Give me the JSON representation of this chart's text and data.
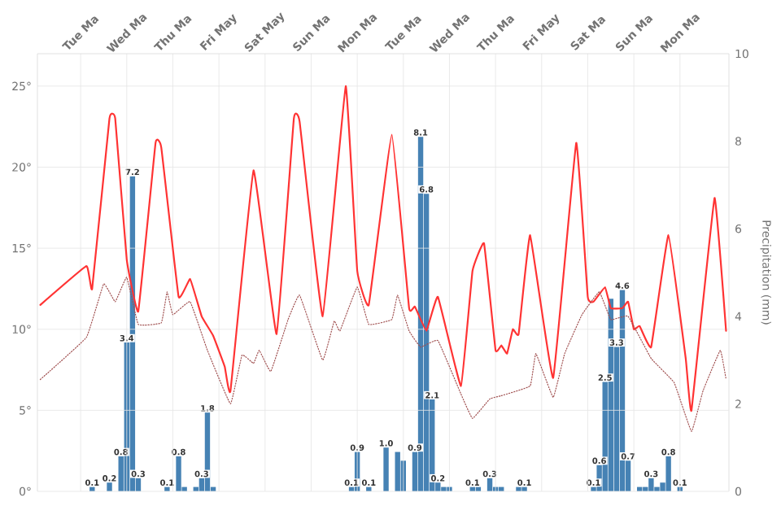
{
  "chart_data": {
    "type": "line",
    "y2label": "Precipitation (mm)",
    "categories": [
      null,
      null,
      null,
      null,
      null,
      null,
      null,
      "Tue Ma",
      null,
      null,
      null,
      null,
      null,
      null,
      null,
      "Wed Ma",
      null,
      null,
      null,
      null,
      null,
      null,
      null,
      "Thu Ma",
      null,
      null,
      null,
      null,
      null,
      null,
      null,
      "Fri May",
      null,
      null,
      null,
      null,
      null,
      null,
      null,
      "Sat May",
      null,
      null,
      null,
      null,
      null,
      null,
      null,
      "Sun Ma",
      null,
      null,
      null,
      null,
      null,
      null,
      null,
      "Mon Ma",
      null,
      null,
      null,
      null,
      null,
      null,
      null,
      "Tue Ma",
      null,
      null,
      null,
      null,
      null,
      null,
      null,
      "Wed Ma",
      null,
      null,
      null,
      null,
      null,
      null,
      null,
      "Thu Ma",
      null,
      null,
      null,
      null,
      null,
      null,
      null,
      "Fri May",
      null,
      null,
      null,
      null,
      null,
      null,
      null,
      "Sat Ma",
      null,
      null,
      null,
      null,
      null,
      null,
      null,
      "Sun Ma",
      null,
      null,
      null,
      null,
      null,
      null,
      null,
      "Mon Ma",
      null,
      null,
      null,
      null,
      null,
      null,
      null,
      null
    ],
    "ylim": [
      0,
      27
    ],
    "yticks": [
      {
        "value": 0,
        "label": "0°"
      },
      {
        "value": 5,
        "label": "5°"
      },
      {
        "value": 10,
        "label": "10°"
      },
      {
        "value": 15,
        "label": "15°"
      },
      {
        "value": 20,
        "label": "20°"
      },
      {
        "value": 25,
        "label": "25°"
      }
    ],
    "y2lim": [
      0,
      10
    ],
    "y2ticks": [
      0,
      2,
      4,
      6,
      8,
      10
    ],
    "grid": true,
    "series": [
      {
        "type": "bar",
        "axis": "y2",
        "color": "#4682b4",
        "values": [
          null,
          null,
          null,
          null,
          null,
          null,
          null,
          null,
          null,
          0.1,
          null,
          null,
          0.2,
          null,
          0.8,
          3.4,
          7.2,
          0.3,
          null,
          null,
          null,
          null,
          0.1,
          null,
          0.8,
          0.1,
          null,
          0.1,
          0.3,
          1.8,
          0.1,
          null,
          null,
          null,
          null,
          null,
          null,
          null,
          null,
          null,
          null,
          null,
          null,
          null,
          null,
          null,
          null,
          null,
          null,
          null,
          null,
          null,
          null,
          null,
          0.1,
          0.9,
          null,
          0.1,
          null,
          null,
          1.0,
          null,
          0.9,
          0.7,
          null,
          0.9,
          8.1,
          6.8,
          2.1,
          0.2,
          0.1,
          0.1,
          null,
          null,
          null,
          0.1,
          0.1,
          null,
          0.3,
          0.1,
          0.1,
          null,
          null,
          0.1,
          0.1,
          null,
          null,
          null,
          null,
          null,
          null,
          null,
          null,
          null,
          null,
          null,
          0.1,
          0.6,
          2.5,
          4.4,
          3.3,
          4.6,
          0.7,
          null,
          0.1,
          0.1,
          0.3,
          0.1,
          0.2,
          0.8,
          null,
          0.1,
          null,
          null,
          null,
          null,
          null,
          null,
          null,
          null
        ],
        "value_labels": [
          null,
          null,
          null,
          null,
          null,
          null,
          null,
          null,
          null,
          "0.1",
          null,
          null,
          "0.2",
          null,
          "0.8",
          "3.4",
          "7.2",
          "0.3",
          null,
          null,
          null,
          null,
          "0.1",
          null,
          "0.8",
          null,
          null,
          null,
          "0.3",
          "1.8",
          null,
          null,
          null,
          null,
          null,
          null,
          null,
          null,
          null,
          null,
          null,
          null,
          null,
          null,
          null,
          null,
          null,
          null,
          null,
          null,
          null,
          null,
          null,
          null,
          "0.1",
          "0.9",
          null,
          "0.1",
          null,
          null,
          "1.0",
          null,
          null,
          null,
          null,
          "0.9",
          "8.1",
          "6.8",
          "2.1",
          "0.2",
          null,
          null,
          null,
          null,
          null,
          "0.1",
          null,
          null,
          "0.3",
          null,
          null,
          null,
          null,
          null,
          "0.1",
          null,
          null,
          null,
          null,
          null,
          null,
          null,
          null,
          null,
          null,
          null,
          "0.1",
          "0.6",
          "2.5",
          null,
          "3.3",
          "4.6",
          "0.7",
          null,
          null,
          null,
          "0.3",
          null,
          null,
          "0.8",
          null,
          "0.1",
          null,
          null,
          null,
          null,
          null,
          null,
          null,
          null
        ]
      },
      {
        "color": "#ff3333",
        "line_style": "solid",
        "marker": "none",
        "values": [
          11.5,
          null,
          null,
          null,
          null,
          null,
          null,
          null,
          13.9,
          12.5,
          null,
          null,
          23.0,
          23.0,
          null,
          14.3,
          null,
          11.1,
          null,
          null,
          21.5,
          21.2,
          null,
          null,
          12.0,
          null,
          13.1,
          null,
          10.8,
          null,
          9.6,
          null,
          7.7,
          6.2,
          null,
          null,
          null,
          19.8,
          null,
          null,
          null,
          9.7,
          null,
          null,
          23.0,
          22.8,
          null,
          null,
          null,
          10.8,
          null,
          null,
          null,
          25.0,
          null,
          13.6,
          null,
          11.5,
          null,
          null,
          null,
          22.0,
          null,
          null,
          11.3,
          11.4,
          null,
          9.9,
          null,
          12.0,
          null,
          null,
          null,
          6.5,
          null,
          13.6,
          null,
          15.3,
          null,
          8.7,
          9.0,
          8.5,
          10.0,
          9.7,
          null,
          15.8,
          null,
          null,
          null,
          7.0,
          null,
          null,
          null,
          21.5,
          null,
          12.0,
          11.7,
          null,
          12.6,
          11.3,
          null,
          11.3,
          11.7,
          10.0,
          10.2,
          null,
          8.9,
          null,
          null,
          15.8,
          null,
          null,
          8.2,
          5.0,
          null,
          null,
          null,
          18.1,
          null,
          9.9
        ]
      },
      {
        "color": "#a05050",
        "line_style": "dotted",
        "marker": "none",
        "values": [
          6.9,
          null,
          null,
          null,
          null,
          null,
          null,
          null,
          9.5,
          null,
          null,
          12.8,
          null,
          11.7,
          null,
          13.2,
          null,
          10.3,
          null,
          null,
          null,
          10.4,
          12.3,
          10.9,
          null,
          null,
          11.7,
          null,
          null,
          8.7,
          null,
          null,
          null,
          5.4,
          null,
          8.4,
          null,
          7.9,
          8.7,
          null,
          7.4,
          null,
          null,
          10.6,
          null,
          12.1,
          null,
          null,
          null,
          8.1,
          null,
          10.5,
          9.9,
          null,
          null,
          12.6,
          null,
          10.3,
          null,
          null,
          null,
          10.6,
          12.1,
          null,
          9.9,
          null,
          8.9,
          null,
          null,
          9.3,
          null,
          null,
          null,
          6.0,
          null,
          4.5,
          null,
          null,
          5.7,
          null,
          5.9,
          null,
          null,
          null,
          null,
          6.5,
          8.5,
          null,
          null,
          5.8,
          null,
          8.5,
          null,
          null,
          10.9,
          null,
          null,
          12.3,
          null,
          10.6,
          null,
          null,
          10.8,
          null,
          null,
          null,
          8.2,
          null,
          null,
          null,
          6.7,
          null,
          null,
          3.7,
          null,
          6.2,
          null,
          null,
          8.7,
          6.9
        ]
      }
    ]
  }
}
